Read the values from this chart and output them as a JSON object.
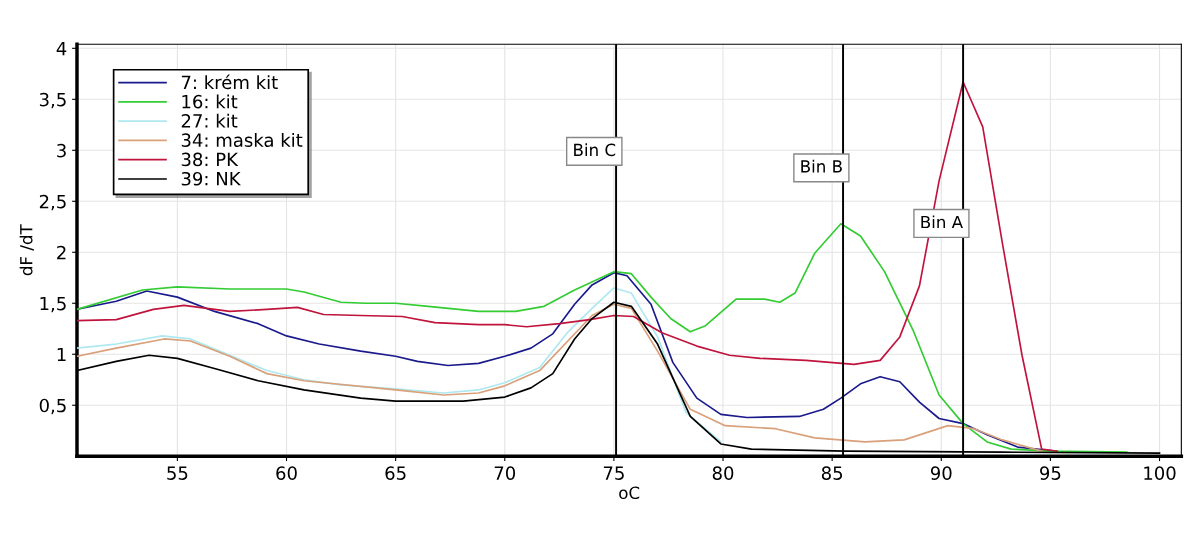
{
  "chart_data": {
    "type": "line",
    "xlabel": "oC",
    "ylabel": "dF /dT",
    "xlim": [
      50.4,
      101
    ],
    "ylim": [
      0,
      4.04
    ],
    "xticks": [
      55,
      60,
      65,
      70,
      75,
      80,
      85,
      90,
      95,
      100
    ],
    "yticks": [
      {
        "value": 0.5,
        "label": "0,5"
      },
      1,
      {
        "value": 1.5,
        "label": "1,5"
      },
      2,
      {
        "value": 2.5,
        "label": "2,5"
      },
      3,
      {
        "value": 3.5,
        "label": "3,5"
      },
      4
    ],
    "grid": true,
    "legend": "top left",
    "marker": "none",
    "line_style": "solid",
    "ref_lines": [
      {
        "axis": "x",
        "value": 75.1,
        "label": "Bin C",
        "color": "#000000"
      },
      {
        "axis": "x",
        "value": 85.5,
        "label": "Bin B",
        "color": "#000000"
      },
      {
        "axis": "x",
        "value": 91.0,
        "label": "Bin A",
        "color": "#000000"
      }
    ],
    "series": [
      {
        "name": "7: krém kit",
        "color": "#1a1a8c",
        "x": [
          50.4,
          52.2,
          53.6,
          55,
          56.7,
          58.7,
          60,
          61.5,
          63.4,
          65,
          66,
          67.4,
          68.8,
          70,
          71.2,
          72.2,
          73.2,
          74,
          75,
          75.6,
          76.7,
          77.7,
          78.8,
          79.9,
          81.1,
          83.5,
          84.6,
          85.4,
          86.3,
          87.2,
          88.1,
          89,
          89.9,
          91,
          92.1,
          93.5,
          95.3
        ],
        "values": [
          1.44,
          1.52,
          1.62,
          1.56,
          1.42,
          1.3,
          1.18,
          1.1,
          1.03,
          0.98,
          0.93,
          0.89,
          0.91,
          0.98,
          1.06,
          1.2,
          1.49,
          1.68,
          1.8,
          1.77,
          1.49,
          0.92,
          0.57,
          0.41,
          0.38,
          0.39,
          0.46,
          0.57,
          0.71,
          0.78,
          0.73,
          0.53,
          0.37,
          0.32,
          0.21,
          0.09,
          0.05
        ]
      },
      {
        "name": "16: kit",
        "color": "#33cc33",
        "x": [
          50.4,
          53.4,
          55,
          57.4,
          60,
          60.8,
          62.5,
          63.6,
          65,
          66.5,
          68.8,
          70.5,
          71.8,
          73.2,
          73.6,
          75,
          75.8,
          76.7,
          77.6,
          78.5,
          79.2,
          80.6,
          81.9,
          82.6,
          83.3,
          84.2,
          85.4,
          86.3,
          87.4,
          88.7,
          89.9,
          91,
          92.1,
          93.2,
          95,
          98.5
        ],
        "values": [
          1.44,
          1.63,
          1.66,
          1.64,
          1.64,
          1.61,
          1.51,
          1.5,
          1.5,
          1.47,
          1.42,
          1.42,
          1.47,
          1.63,
          1.67,
          1.81,
          1.79,
          1.56,
          1.35,
          1.22,
          1.28,
          1.54,
          1.54,
          1.51,
          1.6,
          1.99,
          2.28,
          2.16,
          1.81,
          1.24,
          0.6,
          0.32,
          0.14,
          0.07,
          0.05,
          0.04
        ]
      },
      {
        "name": "27: kit",
        "color": "#aee8f0",
        "x": [
          50.4,
          52.2,
          54.3,
          55.6,
          57.4,
          59.1,
          60.8,
          62.5,
          65,
          67.2,
          68.8,
          70,
          71.6,
          72.9,
          74,
          75,
          75.8,
          77,
          78.3,
          79.9
        ],
        "values": [
          1.06,
          1.1,
          1.18,
          1.15,
          0.99,
          0.84,
          0.75,
          0.7,
          0.66,
          0.62,
          0.65,
          0.72,
          0.87,
          1.22,
          1.45,
          1.65,
          1.6,
          1.17,
          0.43,
          0.14
        ]
      },
      {
        "name": "34: maska kit",
        "color": "#d9a07a",
        "x": [
          50.4,
          52.2,
          54.4,
          55.6,
          57.4,
          59.1,
          60.8,
          65,
          67.2,
          68.8,
          70,
          71.6,
          74,
          75,
          75.8,
          77,
          78.5,
          80.1,
          82.4,
          84.2,
          86.5,
          88.3,
          90.3,
          91.5,
          92.8,
          94.6
        ],
        "values": [
          0.98,
          1.06,
          1.15,
          1.13,
          0.98,
          0.81,
          0.74,
          0.65,
          0.6,
          0.62,
          0.69,
          0.84,
          1.38,
          1.49,
          1.45,
          1.03,
          0.46,
          0.3,
          0.27,
          0.18,
          0.14,
          0.16,
          0.3,
          0.27,
          0.16,
          0.05
        ]
      },
      {
        "name": "38: PK",
        "color": "#c0143c",
        "x": [
          50.4,
          52.2,
          53.9,
          55.3,
          57.4,
          59.1,
          60.5,
          61.7,
          63.4,
          65.3,
          66.8,
          68.8,
          70,
          71,
          72.5,
          73.9,
          75,
          75.9,
          77.2,
          78.8,
          80.3,
          81.7,
          83.8,
          86,
          87.2,
          88.1,
          89,
          89.9,
          91,
          91.9,
          92.8,
          93.7,
          94.6,
          95.3
        ],
        "values": [
          1.33,
          1.34,
          1.44,
          1.48,
          1.42,
          1.44,
          1.46,
          1.39,
          1.38,
          1.37,
          1.31,
          1.29,
          1.29,
          1.27,
          1.3,
          1.34,
          1.38,
          1.37,
          1.21,
          1.08,
          0.99,
          0.96,
          0.94,
          0.9,
          0.94,
          1.17,
          1.67,
          2.7,
          3.67,
          3.23,
          2.09,
          0.99,
          0.07,
          0.05
        ]
      },
      {
        "name": "39: NK",
        "color": "#000000",
        "x": [
          50.4,
          52.2,
          53.7,
          55,
          56.7,
          58.7,
          60.8,
          63.4,
          65,
          68.1,
          70,
          71.2,
          72.2,
          73.2,
          74,
          75,
          75.8,
          77,
          78.5,
          79.9,
          81.3,
          85.6,
          92.8,
          100
        ],
        "values": [
          0.84,
          0.93,
          0.99,
          0.96,
          0.86,
          0.74,
          0.65,
          0.57,
          0.54,
          0.54,
          0.58,
          0.67,
          0.81,
          1.15,
          1.35,
          1.51,
          1.47,
          1.1,
          0.39,
          0.12,
          0.07,
          0.05,
          0.04,
          0.03
        ]
      }
    ]
  }
}
